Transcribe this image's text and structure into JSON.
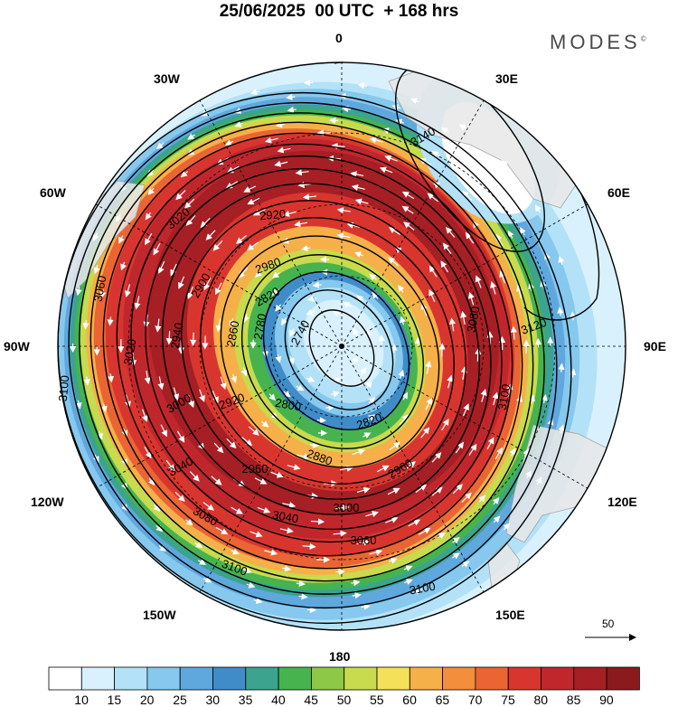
{
  "header": {
    "title": "25/06/2025  00 UTC  + 168 hrs",
    "brand": "MODES",
    "brand_mark": "©"
  },
  "map": {
    "projection": "polar-stereographic",
    "hemisphere": "north",
    "longitude_labels": {
      "n": "0",
      "ne1": "30E",
      "ne2": "60E",
      "e": "90E",
      "se1": "120E",
      "se2": "150E",
      "s": "180",
      "sw2": "150W",
      "sw1": "120W",
      "w": "90W",
      "nw2": "60W",
      "nw1": "30W"
    },
    "contour_labels": [
      "2740",
      "2780",
      "2800",
      "2820",
      "2860",
      "2880",
      "2900",
      "2920",
      "2940",
      "2960",
      "2980",
      "3000",
      "3020",
      "3040",
      "3060",
      "3080",
      "3100",
      "3120",
      "3140"
    ],
    "wind_reference_vector": "50"
  },
  "colorbar": {
    "labels": [
      "10",
      "15",
      "20",
      "25",
      "30",
      "35",
      "40",
      "45",
      "50",
      "55",
      "60",
      "65",
      "70",
      "75",
      "80",
      "85",
      "90"
    ],
    "colors": [
      "#ffffff",
      "#d9f1fd",
      "#b3e2f8",
      "#86c8ee",
      "#5fa8de",
      "#3f8cc9",
      "#3ca38e",
      "#46b34f",
      "#8dc846",
      "#c8da4e",
      "#f5e05a",
      "#f6b04a",
      "#f28e3c",
      "#ea6533",
      "#d9352f",
      "#c0272d",
      "#a51f24",
      "#8b1a1f"
    ]
  }
}
